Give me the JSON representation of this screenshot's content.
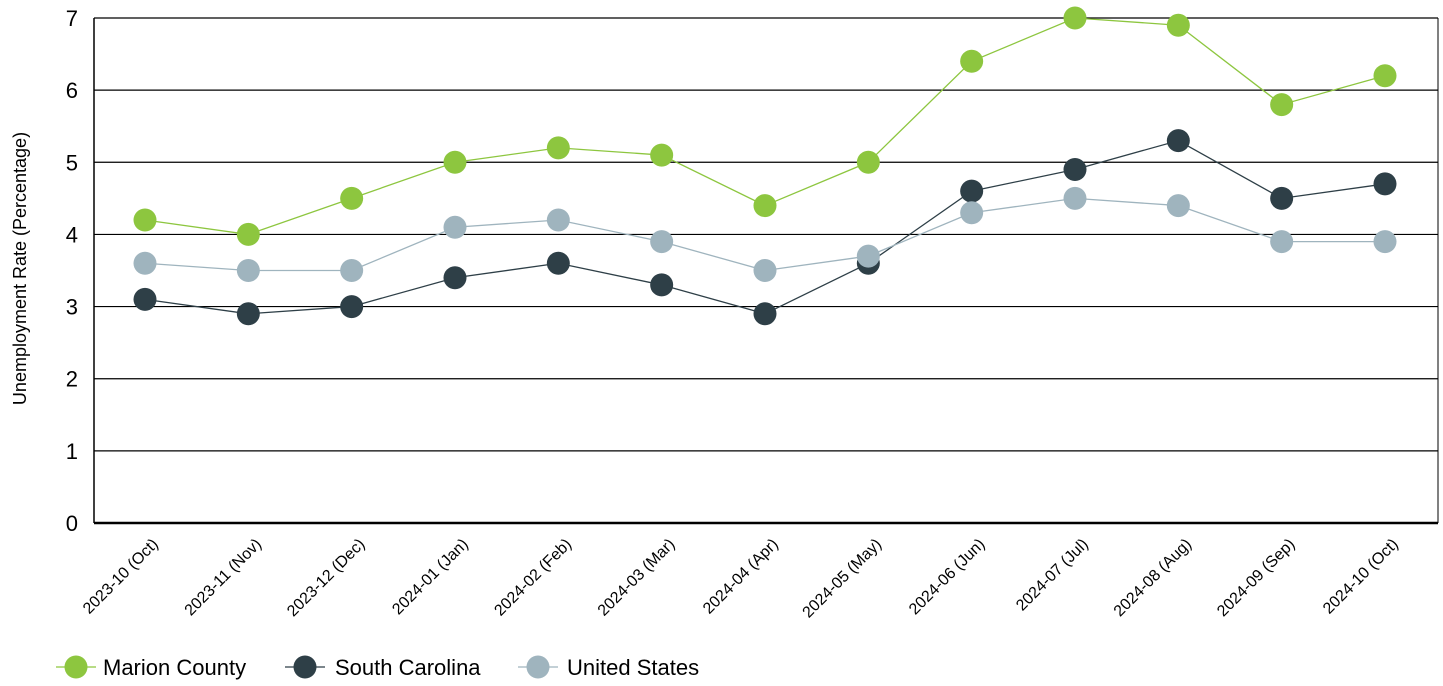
{
  "chart_data": {
    "type": "line",
    "ylabel": "Unemployment Rate (Percentage)",
    "xlabel": "",
    "ylim": [
      0,
      7
    ],
    "yticks": [
      0,
      1,
      2,
      3,
      4,
      5,
      6,
      7
    ],
    "grid": true,
    "legend_position": "bottom-left",
    "categories": [
      "2023-10 (Oct)",
      "2023-11 (Nov)",
      "2023-12 (Dec)",
      "2024-01 (Jan)",
      "2024-02 (Feb)",
      "2024-03 (Mar)",
      "2024-04 (Apr)",
      "2024-05 (May)",
      "2024-06 (Jun)",
      "2024-07 (Jul)",
      "2024-08 (Aug)",
      "2024-09 (Sep)",
      "2024-10 (Oct)"
    ],
    "series": [
      {
        "name": "Marion County",
        "color": "#8dc63f",
        "values": [
          4.2,
          4.0,
          4.5,
          5.0,
          5.2,
          5.1,
          4.4,
          5.0,
          6.4,
          7.0,
          6.9,
          5.8,
          6.2
        ]
      },
      {
        "name": "South Carolina",
        "color": "#2e3f47",
        "values": [
          3.1,
          2.9,
          3.0,
          3.4,
          3.6,
          3.3,
          2.9,
          3.6,
          4.6,
          4.9,
          5.3,
          4.5,
          4.7
        ]
      },
      {
        "name": "United States",
        "color": "#9fb4be",
        "values": [
          3.6,
          3.5,
          3.5,
          4.1,
          4.2,
          3.9,
          3.5,
          3.7,
          4.3,
          4.5,
          4.4,
          3.9,
          3.9
        ]
      }
    ]
  }
}
